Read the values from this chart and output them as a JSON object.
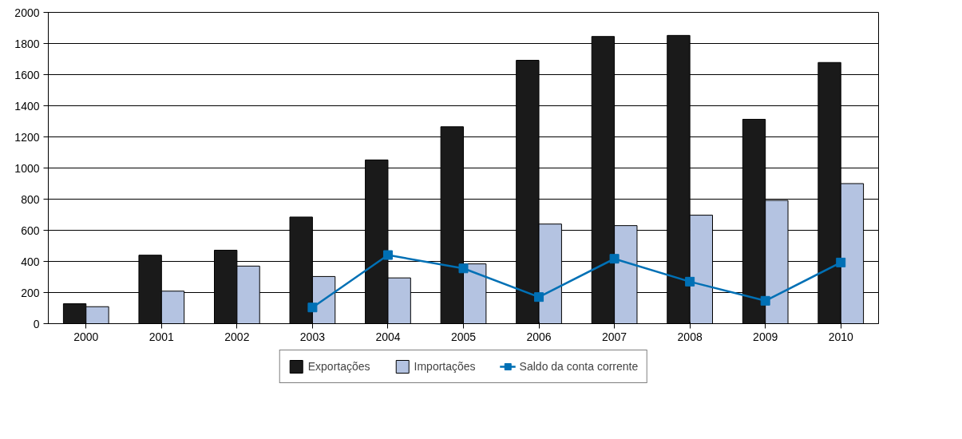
{
  "chart_data": {
    "type": "bar",
    "categories": [
      "2000",
      "2001",
      "2002",
      "2003",
      "2004",
      "2005",
      "2006",
      "2007",
      "2008",
      "2009",
      "2010"
    ],
    "series": [
      {
        "name": "Exportações",
        "color": "#1a1a1a",
        "values": [
          128,
          440,
          472,
          685,
          1052,
          1265,
          1692,
          1845,
          1852,
          1313,
          1678
        ]
      },
      {
        "name": "Importações",
        "color": "#b4c3e1",
        "values": [
          109,
          209,
          370,
          303,
          294,
          384,
          640,
          630,
          697,
          792,
          900
        ]
      },
      {
        "name": "Saldo da conta corrente",
        "type": "line",
        "marker": "square",
        "color": "#0070b5",
        "values": [
          null,
          null,
          null,
          104,
          441,
          355,
          171,
          417,
          270,
          147,
          393
        ]
      }
    ],
    "ylim": [
      0,
      2000
    ],
    "yticks": [
      0,
      200,
      400,
      600,
      800,
      1000,
      1200,
      1400,
      1600,
      1800,
      2000
    ],
    "grid": "y",
    "legend": "bottom"
  }
}
